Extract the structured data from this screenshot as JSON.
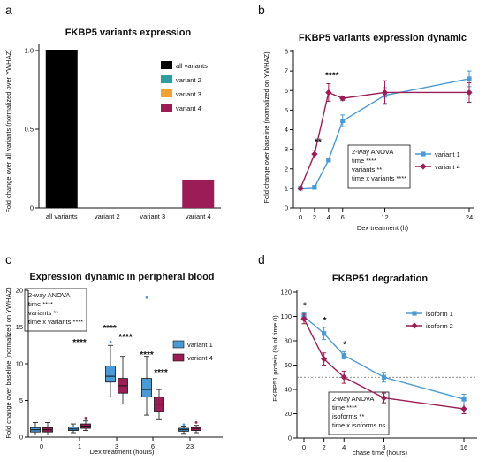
{
  "chart_data": [
    {
      "panel": "a",
      "type": "bar",
      "title": "FKBP5 variants expression",
      "ylabel": "Fold change over all variants  (normalized over YWHAZ)",
      "categories": [
        "all variants",
        "variant 2",
        "variant 3",
        "variant 4"
      ],
      "values": [
        1.0,
        0,
        0,
        0.18
      ],
      "ylim": [
        0,
        1.0
      ],
      "yticks": [
        "0",
        "0.5",
        "1.0"
      ],
      "legend": [
        "all variants",
        "variant 2",
        "variant 3",
        "variant 4"
      ],
      "colors": [
        "#000000",
        "#2e9da0",
        "#f2a333",
        "#9b1d55"
      ],
      "legend_position": "right"
    },
    {
      "panel": "b",
      "type": "line",
      "title": "FKBP5 variants expression dynamic",
      "xlabel": "Dex treatment (h)",
      "ylabel": "Fold change over baseline (normalized on YWHAZ)",
      "x": [
        0,
        2,
        4,
        6,
        12,
        24
      ],
      "xticks": [
        "0",
        "2",
        "4",
        "6",
        "12",
        "24"
      ],
      "yticks": [
        "0",
        "1",
        "2",
        "3",
        "4",
        "5",
        "6",
        "7",
        "8"
      ],
      "ylim": [
        0,
        8
      ],
      "series": [
        {
          "name": "variant 1",
          "color": "#4a9ad6",
          "values": [
            1.0,
            1.05,
            2.45,
            4.45,
            5.75,
            6.6
          ],
          "err": [
            0.05,
            0.1,
            0.1,
            0.3,
            0.4,
            0.4
          ]
        },
        {
          "name": "variant 4",
          "color": "#9b1d55",
          "values": [
            1.0,
            2.75,
            5.9,
            5.6,
            5.9,
            5.9
          ],
          "err": [
            0.05,
            0.2,
            0.45,
            0.1,
            0.6,
            0.5
          ]
        }
      ],
      "annotations": [
        {
          "x": 2,
          "text": "**"
        },
        {
          "x": 4,
          "text": "****"
        }
      ],
      "stats": [
        "2-way ANOVA",
        "time ****",
        "variants **",
        "time x variants ****"
      ],
      "legend_position": "right"
    },
    {
      "panel": "c",
      "type": "box",
      "title": "Expression dynamic in peripheral blood",
      "xlabel": "Dex treatment (hours)",
      "ylabel": "Fold change over baseline (normalized on YWHAZ)",
      "categories": [
        "0",
        "1",
        "3",
        "6",
        "23"
      ],
      "yticks": [
        "0",
        "5",
        "10",
        "15",
        "20"
      ],
      "ylim": [
        0,
        20
      ],
      "series": [
        {
          "name": "variant 1",
          "color": "#4a9ad6",
          "boxes": [
            {
              "min": 0.3,
              "q1": 0.7,
              "median": 1.0,
              "q3": 1.3,
              "max": 2.0,
              "outliers": []
            },
            {
              "min": 0.6,
              "q1": 0.9,
              "median": 1.1,
              "q3": 1.4,
              "max": 1.8,
              "outliers": []
            },
            {
              "min": 5.5,
              "q1": 7.5,
              "median": 8.3,
              "q3": 9.7,
              "max": 12.5,
              "outliers": [
                13.0
              ]
            },
            {
              "min": 3.0,
              "q1": 5.5,
              "median": 6.5,
              "q3": 8.0,
              "max": 11.0,
              "outliers": [
                19.0
              ]
            },
            {
              "min": 0.5,
              "q1": 0.8,
              "median": 1.0,
              "q3": 1.2,
              "max": 1.5,
              "outliers": [
                1.7
              ]
            }
          ]
        },
        {
          "name": "variant 4",
          "color": "#9b1d55",
          "boxes": [
            {
              "min": 0.3,
              "q1": 0.7,
              "median": 1.0,
              "q3": 1.3,
              "max": 2.0,
              "outliers": []
            },
            {
              "min": 0.9,
              "q1": 1.2,
              "median": 1.5,
              "q3": 1.8,
              "max": 2.2,
              "outliers": [
                2.6
              ]
            },
            {
              "min": 4.5,
              "q1": 6.0,
              "median": 7.0,
              "q3": 8.0,
              "max": 11.0,
              "outliers": []
            },
            {
              "min": 2.5,
              "q1": 3.5,
              "median": 4.5,
              "q3": 5.5,
              "max": 6.5,
              "outliers": []
            },
            {
              "min": 0.6,
              "q1": 0.9,
              "median": 1.2,
              "q3": 1.4,
              "max": 1.6,
              "outliers": [
                2.0
              ]
            }
          ]
        }
      ],
      "annotations": [
        {
          "x": "1",
          "text": "****"
        },
        {
          "x": "3",
          "text": "****"
        },
        {
          "x": "3",
          "text": "****"
        },
        {
          "x": "6",
          "text": "****"
        },
        {
          "x": "6",
          "text": "****"
        }
      ],
      "stats": [
        "2-way ANOVA",
        "time ****",
        "variants **",
        "time x variants ****"
      ],
      "legend_position": "right"
    },
    {
      "panel": "d",
      "type": "line",
      "title": "FKBP51 degradation",
      "xlabel": "chase time (hours)",
      "ylabel": "FKBP51 protein (% of time 0)",
      "x": [
        0,
        2,
        4,
        8,
        16
      ],
      "xticks": [
        "0",
        "2",
        "4",
        "8",
        "16"
      ],
      "yticks": [
        "0",
        "20",
        "40",
        "60",
        "80",
        "100",
        "120"
      ],
      "ylim": [
        0,
        120
      ],
      "reference_line": 50,
      "series": [
        {
          "name": "isoform 1",
          "color": "#4a9ad6",
          "values": [
            100,
            86,
            68,
            50,
            32
          ],
          "err": [
            3,
            5,
            3,
            4,
            4
          ]
        },
        {
          "name": "isoform 2",
          "color": "#9b1d55",
          "values": [
            98,
            65,
            50,
            33,
            24
          ],
          "err": [
            4,
            5,
            5,
            4,
            4
          ]
        }
      ],
      "annotations": [
        {
          "x": 0,
          "text": "*"
        },
        {
          "x": 2,
          "text": "*"
        },
        {
          "x": 4,
          "text": "*"
        }
      ],
      "stats": [
        "2-way ANOVA",
        "time ****",
        "isoforms **",
        "time x isoforms ns"
      ],
      "legend_position": "right"
    }
  ],
  "panel_labels": [
    "a",
    "b",
    "c",
    "d"
  ]
}
